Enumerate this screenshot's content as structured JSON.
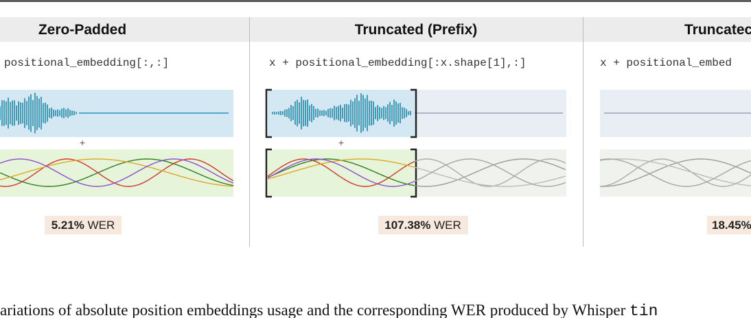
{
  "panels": [
    {
      "title": "Zero-Padded",
      "code": "positional_embedding[:,:]",
      "wer_value": "5.21%",
      "wer_unit": "WER",
      "plus": "+"
    },
    {
      "title": "Truncated (Prefix)",
      "code": "x + positional_embedding[:x.shape[1],:]",
      "wer_value": "107.38%",
      "wer_unit": "WER",
      "plus": "+"
    },
    {
      "title": "Truncatec",
      "code": "x + positional_embed",
      "wer_value": "18.45%"
    }
  ],
  "caption": {
    "text": "ariations of absolute position embeddings usage and the corresponding WER produced by Whisper ",
    "code": "tin"
  }
}
